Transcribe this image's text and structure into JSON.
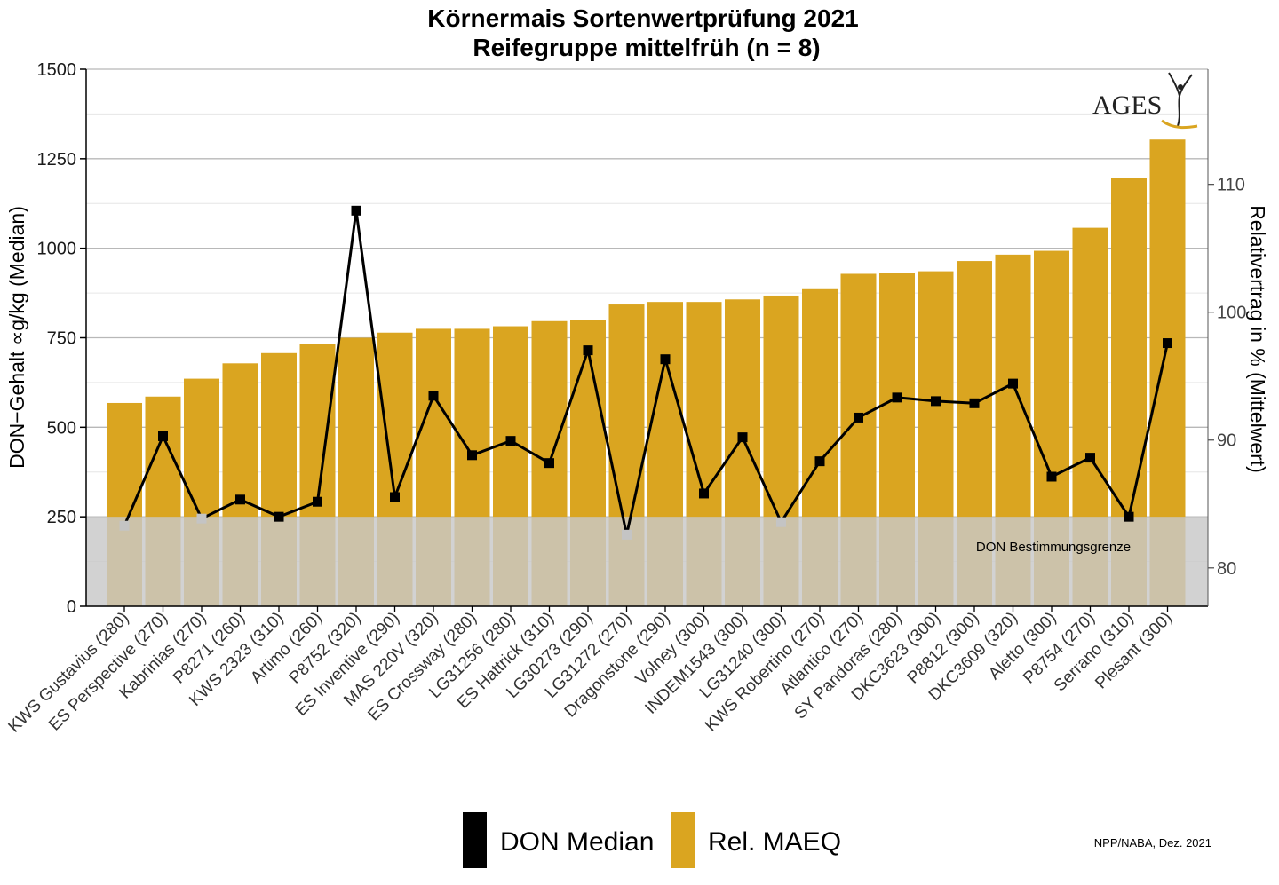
{
  "chart_data": {
    "type": "bar",
    "title": "Körnermais Sortenwertprüfung 2021",
    "subtitle": "Reifegruppe mittelfrüh (n = 8)",
    "ylabel_left": "DON−Gehalt ∝g/kg (Median)",
    "ylabel_right": "Relativertrag in % (Mittelwert)",
    "ylim_left": [
      0,
      1500
    ],
    "yticks_left": [
      0,
      250,
      500,
      750,
      1000,
      1250,
      1500
    ],
    "ylim_right": [
      77,
      119
    ],
    "yticks_right": [
      80,
      90,
      100,
      110
    ],
    "grid": true,
    "legend_position": "bottom",
    "categories": [
      "KWS Gustavius (280)",
      "ES Perspective (270)",
      "Kabrinias (270)",
      "P8271 (260)",
      "KWS 2323 (310)",
      "Artimo (260)",
      "P8752 (320)",
      "ES Inventive (290)",
      "MAS 220V (320)",
      "ES Crossway (280)",
      "LG31256 (280)",
      "ES Hattrick (310)",
      "LG30273 (290)",
      "LG31272 (270)",
      "Dragonstone (290)",
      "Volney (300)",
      "INDEM1543 (300)",
      "LG31240 (300)",
      "KWS Robertino (270)",
      "Atlantico (270)",
      "SY Pandoras (280)",
      "DKC3623 (300)",
      "P8812 (300)",
      "DKC3609 (320)",
      "Aletto (300)",
      "P8754 (270)",
      "Serrano (310)",
      "Plesant (300)"
    ],
    "series": [
      {
        "name": "Rel. MAEQ",
        "axis": "right",
        "kind": "bar",
        "color": "#DAA520",
        "values": [
          92.9,
          93.4,
          94.8,
          96.0,
          96.8,
          97.5,
          98.0,
          98.4,
          98.7,
          98.7,
          98.9,
          99.3,
          99.4,
          100.6,
          100.8,
          100.8,
          101.0,
          101.3,
          101.8,
          103.0,
          103.1,
          103.2,
          104.0,
          104.5,
          104.8,
          106.6,
          110.5,
          113.5
        ]
      },
      {
        "name": "DON Median",
        "axis": "left",
        "kind": "line",
        "color": "#000000",
        "values": [
          225,
          475,
          245,
          298,
          250,
          292,
          1105,
          305,
          588,
          422,
          462,
          400,
          715,
          200,
          690,
          315,
          472,
          235,
          405,
          527,
          583,
          573,
          567,
          622,
          362,
          415,
          250,
          735
        ]
      }
    ],
    "annotations": {
      "limit_label": "DON Bestimmungsgrenze",
      "limit_value": 250,
      "credit": "NPP/NABA, Dez. 2021",
      "logo": "AGES"
    },
    "colors": {
      "bar": "#DAA520",
      "line": "#000000",
      "limit_band": "#C8C8C8",
      "gridline": "#b8b8b8",
      "gridline_minor": "#e6e6e6"
    }
  }
}
